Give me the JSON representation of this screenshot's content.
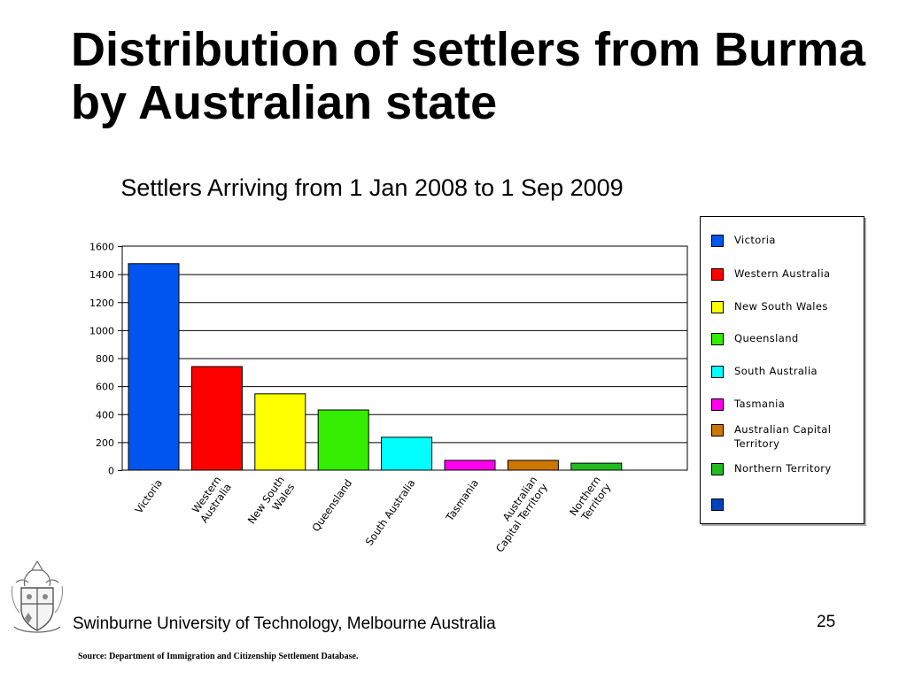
{
  "slide": {
    "title": "Distribution of settlers from Burma by Australian state",
    "footer": "Swinburne University of Technology, Melbourne Australia",
    "page_number": "25",
    "source": "Source: Department of Immigration and Citizenship Settlement Database."
  },
  "chart_data": {
    "type": "bar",
    "title": "Settlers Arriving from 1 Jan 2008 to  1 Sep 2009",
    "categories": [
      "Victoria",
      "Western Australia",
      "New South Wales",
      "Queensland",
      "South Australia",
      "Tasmania",
      "Australian Capital Territory",
      "Northern Territory"
    ],
    "tick_labels": [
      [
        "Victoria"
      ],
      [
        "Western",
        "Australia"
      ],
      [
        "New South",
        "Wales"
      ],
      [
        "Queensland"
      ],
      [
        "South Australia"
      ],
      [
        "Tasmania"
      ],
      [
        "Australian",
        "Capital Territory"
      ],
      [
        "Northern",
        "Territory"
      ]
    ],
    "values": [
      1475,
      740,
      545,
      430,
      235,
      70,
      70,
      50
    ],
    "colors": [
      "#0055ee",
      "#ff0000",
      "#ffff00",
      "#33ee00",
      "#00ffff",
      "#ff00ee",
      "#cc7700",
      "#22bb22"
    ],
    "ylim": [
      0,
      1600
    ],
    "yticks": [
      0,
      200,
      400,
      600,
      800,
      1000,
      1200,
      1400,
      1600
    ],
    "grid": true,
    "legend": {
      "placement": "right",
      "items": [
        {
          "label": "Victoria",
          "color": "#0055ee"
        },
        {
          "label": "Western Australia",
          "color": "#ff0000"
        },
        {
          "label": "New South Wales",
          "color": "#ffff00"
        },
        {
          "label": "Queensland",
          "color": "#33ee00"
        },
        {
          "label": "South Australia",
          "color": "#00ffff"
        },
        {
          "label": "Tasmania",
          "color": "#ff00ee"
        },
        {
          "label": "Australian Capital Territory",
          "color": "#cc7700"
        },
        {
          "label": "Northern Territory",
          "color": "#22bb22"
        },
        {
          "label": "",
          "color": "#0044bb"
        }
      ]
    }
  }
}
